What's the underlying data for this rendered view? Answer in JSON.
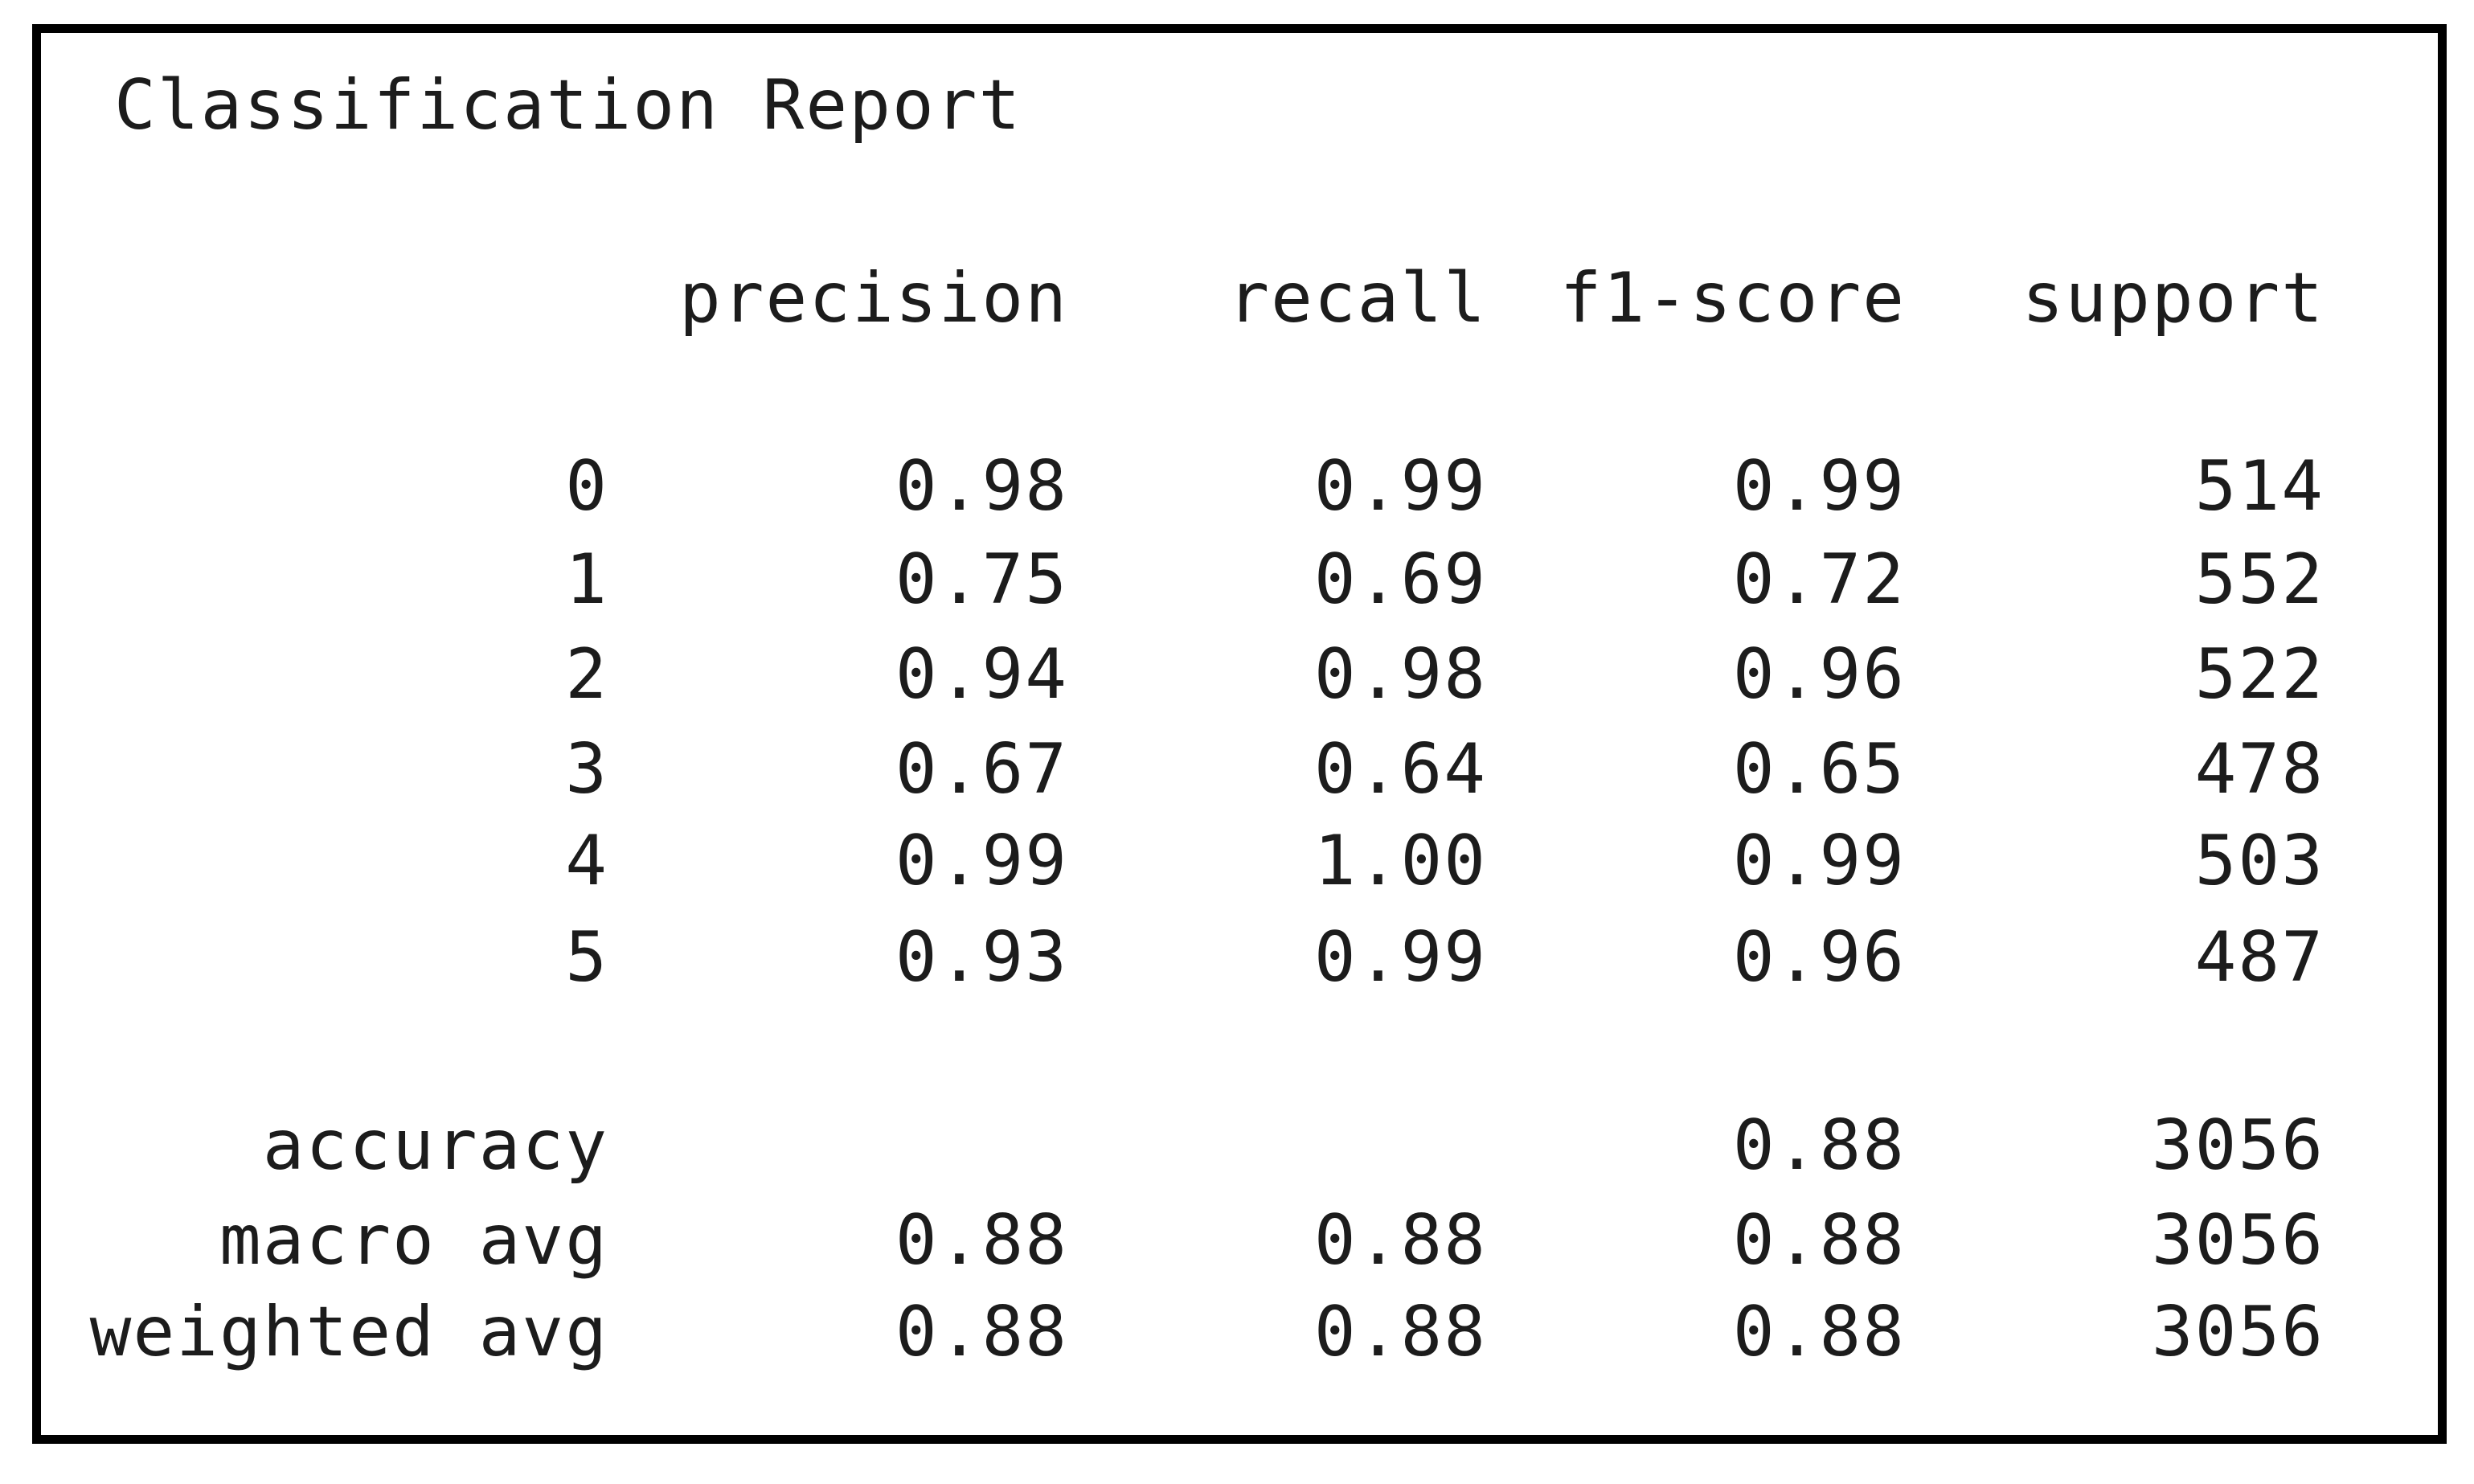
{
  "report": {
    "title": "Classification Report",
    "headers": {
      "precision": "precision",
      "recall": "recall",
      "f1": "f1-score",
      "support": "support"
    },
    "classes": [
      {
        "label": "0",
        "precision": "0.98",
        "recall": "0.99",
        "f1": "0.99",
        "support": "514"
      },
      {
        "label": "1",
        "precision": "0.75",
        "recall": "0.69",
        "f1": "0.72",
        "support": "552"
      },
      {
        "label": "2",
        "precision": "0.94",
        "recall": "0.98",
        "f1": "0.96",
        "support": "522"
      },
      {
        "label": "3",
        "precision": "0.67",
        "recall": "0.64",
        "f1": "0.65",
        "support": "478"
      },
      {
        "label": "4",
        "precision": "0.99",
        "recall": "1.00",
        "f1": "0.99",
        "support": "503"
      },
      {
        "label": "5",
        "precision": "0.93",
        "recall": "0.99",
        "f1": "0.96",
        "support": "487"
      }
    ],
    "accuracy": {
      "label": "accuracy",
      "f1": "0.88",
      "support": "3056"
    },
    "macro_avg": {
      "label": "macro avg",
      "precision": "0.88",
      "recall": "0.88",
      "f1": "0.88",
      "support": "3056"
    },
    "weighted_avg": {
      "label": "weighted avg",
      "precision": "0.88",
      "recall": "0.88",
      "f1": "0.88",
      "support": "3056"
    }
  }
}
